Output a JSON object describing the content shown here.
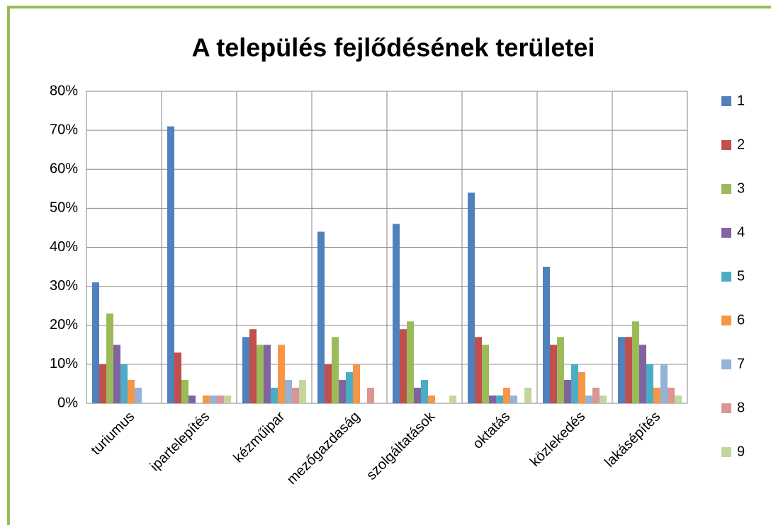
{
  "chart_data": {
    "type": "bar",
    "title": "A település fejlődésének területei",
    "categories": [
      "turiumus",
      "ipartelepítés",
      "kézműipar",
      "mezőgazdaság",
      "szolgáltatások",
      "oktatás",
      "közlekedés",
      "lakásépítés"
    ],
    "series": [
      {
        "name": "1",
        "color": "#4F81BD",
        "values": [
          31,
          71,
          17,
          44,
          46,
          54,
          35,
          17
        ]
      },
      {
        "name": "2",
        "color": "#C0504D",
        "values": [
          10,
          13,
          19,
          10,
          19,
          17,
          15,
          17
        ]
      },
      {
        "name": "3",
        "color": "#9BBB59",
        "values": [
          23,
          6,
          15,
          17,
          21,
          15,
          17,
          21
        ]
      },
      {
        "name": "4",
        "color": "#8064A2",
        "values": [
          15,
          2,
          15,
          6,
          4,
          2,
          6,
          15
        ]
      },
      {
        "name": "5",
        "color": "#4BACC6",
        "values": [
          10,
          0,
          4,
          8,
          6,
          2,
          10,
          10
        ]
      },
      {
        "name": "6",
        "color": "#F79646",
        "values": [
          6,
          2,
          15,
          10,
          2,
          4,
          8,
          4
        ]
      },
      {
        "name": "7",
        "color": "#95B3D7",
        "values": [
          4,
          2,
          6,
          0,
          0,
          2,
          2,
          10
        ]
      },
      {
        "name": "8",
        "color": "#D99694",
        "values": [
          0,
          2,
          4,
          4,
          0,
          0,
          4,
          4
        ]
      },
      {
        "name": "9",
        "color": "#C3D69B",
        "values": [
          0,
          2,
          6,
          0,
          2,
          4,
          2,
          2
        ]
      }
    ],
    "ylim": [
      0,
      80
    ],
    "yticks": [
      {
        "value": 0,
        "label": "0%"
      },
      {
        "value": 10,
        "label": "10%"
      },
      {
        "value": 20,
        "label": "20%"
      },
      {
        "value": 30,
        "label": "30%"
      },
      {
        "value": 40,
        "label": "40%"
      },
      {
        "value": 50,
        "label": "50%"
      },
      {
        "value": 60,
        "label": "60%"
      },
      {
        "value": 70,
        "label": "70%"
      },
      {
        "value": 80,
        "label": "80%"
      }
    ],
    "grid": true,
    "legend": "right"
  }
}
